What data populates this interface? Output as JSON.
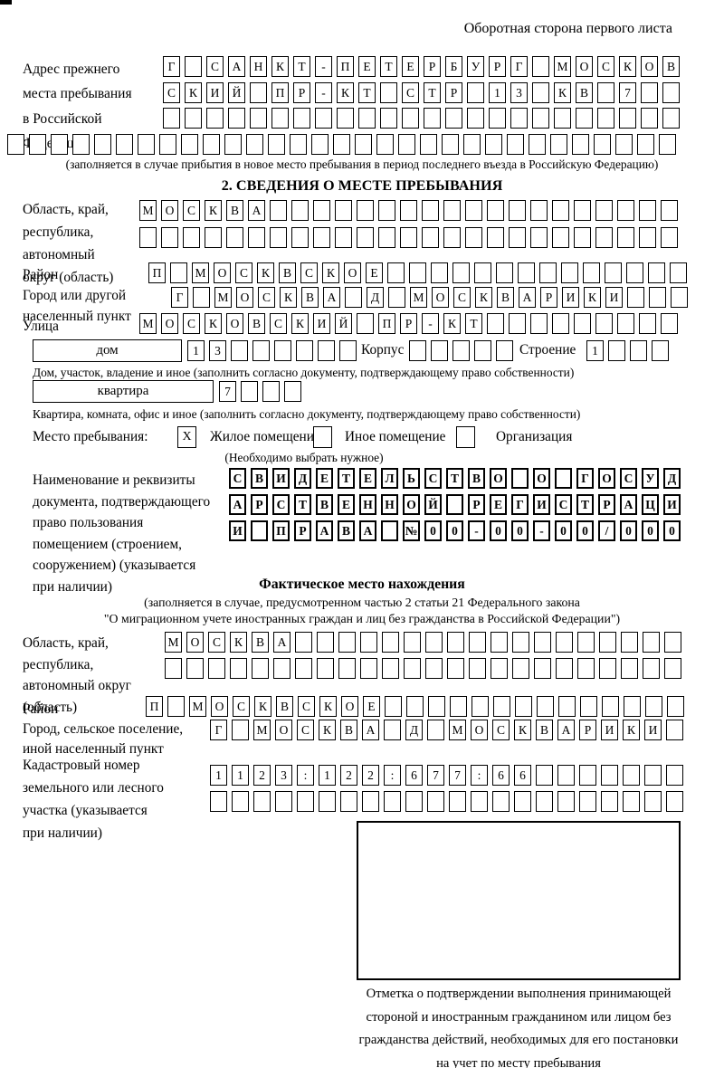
{
  "page": {
    "header_note": "Оборотная сторона первого листа"
  },
  "prev_address": {
    "label": "Адрес прежнего\nместа пребывания\nв Российской\nФедерации",
    "row1": "Г САНКТ-ПЕТЕРБУРГ МОСКОВ",
    "row2": "СКИЙ ПР-КТ СТР 13 КВ 7",
    "row3": "",
    "row4": "",
    "note": "(заполняется в случае прибытия в новое место пребывания в период последнего въезда в Российскую Федерацию)"
  },
  "section2": {
    "title": "2. СВЕДЕНИЯ О МЕСТЕ ПРЕБЫВАНИЯ",
    "oblast": {
      "label": "Область, край,\nреспублика,\nавтономный\nокруг (область)",
      "row1": "МОСКВА",
      "row2": ""
    },
    "raion": {
      "label": "Район",
      "row": "П МОСКВСКОЕ"
    },
    "gorod": {
      "label": "Город или другой\nнаселенный пункт",
      "row": "Г МОСКВА Д МОСКВАРИКИ"
    },
    "ulitsa": {
      "label": "Улица",
      "row": "МОСКОВСКИЙ ПР-КТ"
    },
    "dom": {
      "box_label": "дом",
      "cells": "13",
      "korpus_label": "Корпус",
      "korpus_cells": "",
      "stroenie_label": "Строение",
      "stroenie_cells": "1",
      "note": "Дом, участок, владение и иное (заполнить согласно документу, подтверждающему право собственности)"
    },
    "kvartira": {
      "box_label": "квартира",
      "cells": "7",
      "note": "Квартира, комната, офис и иное (заполнить согласно документу, подтверждающему право собственности)"
    },
    "mesto": {
      "label": "Место пребывания:",
      "x_mark": "X",
      "option1": "Жилое помещение",
      "option2": "Иное помещение",
      "option3": "Организация",
      "note": "(Необходимо выбрать нужное)"
    },
    "document": {
      "label": "Наименование и реквизиты\nдокумента, подтверждающего\nправо пользования\nпомещением (строением,\nсооружением) (указывается\nпри наличии)",
      "row1": "СВИДЕТЕЛЬСТВО О ГОСУД",
      "row2": "АРСТВЕННОЙ РЕГИСТРАЦИ",
      "row3": "И ПРАВА №00-00-00/000"
    }
  },
  "fact_section": {
    "title": "Фактическое место нахождения",
    "note_line1": "(заполняется в случае, предусмотренном частью 2 статьи 21 Федерального закона",
    "note_line2": "\"О миграционном учете иностранных граждан и лиц без гражданства в Российской Федерации\")",
    "oblast": {
      "label": "Область, край,\nреспублика,\nавтономный округ\n(область)",
      "row1": "МОСКВА",
      "row2": ""
    },
    "raion": {
      "label": "Район",
      "row": "П МОСКВСКОЕ"
    },
    "gorod": {
      "label": "Город, сельское поселение,\nиной населенный пункт",
      "row": "Г МОСКВА Д МОСКВАРИКИ"
    },
    "kadastr": {
      "label": "Кадастровый номер\nземельного или лесного\nучастка (указывается\nпри наличии)",
      "row1": "1123:122:677:66",
      "row2": ""
    },
    "stamp_note": "Отметка о подтверждении выполнения принимающей\nстороной и иностранным гражданином или лицом без\nгражданства действий, необходимых для его постановки\nна учет по месту пребывания"
  }
}
